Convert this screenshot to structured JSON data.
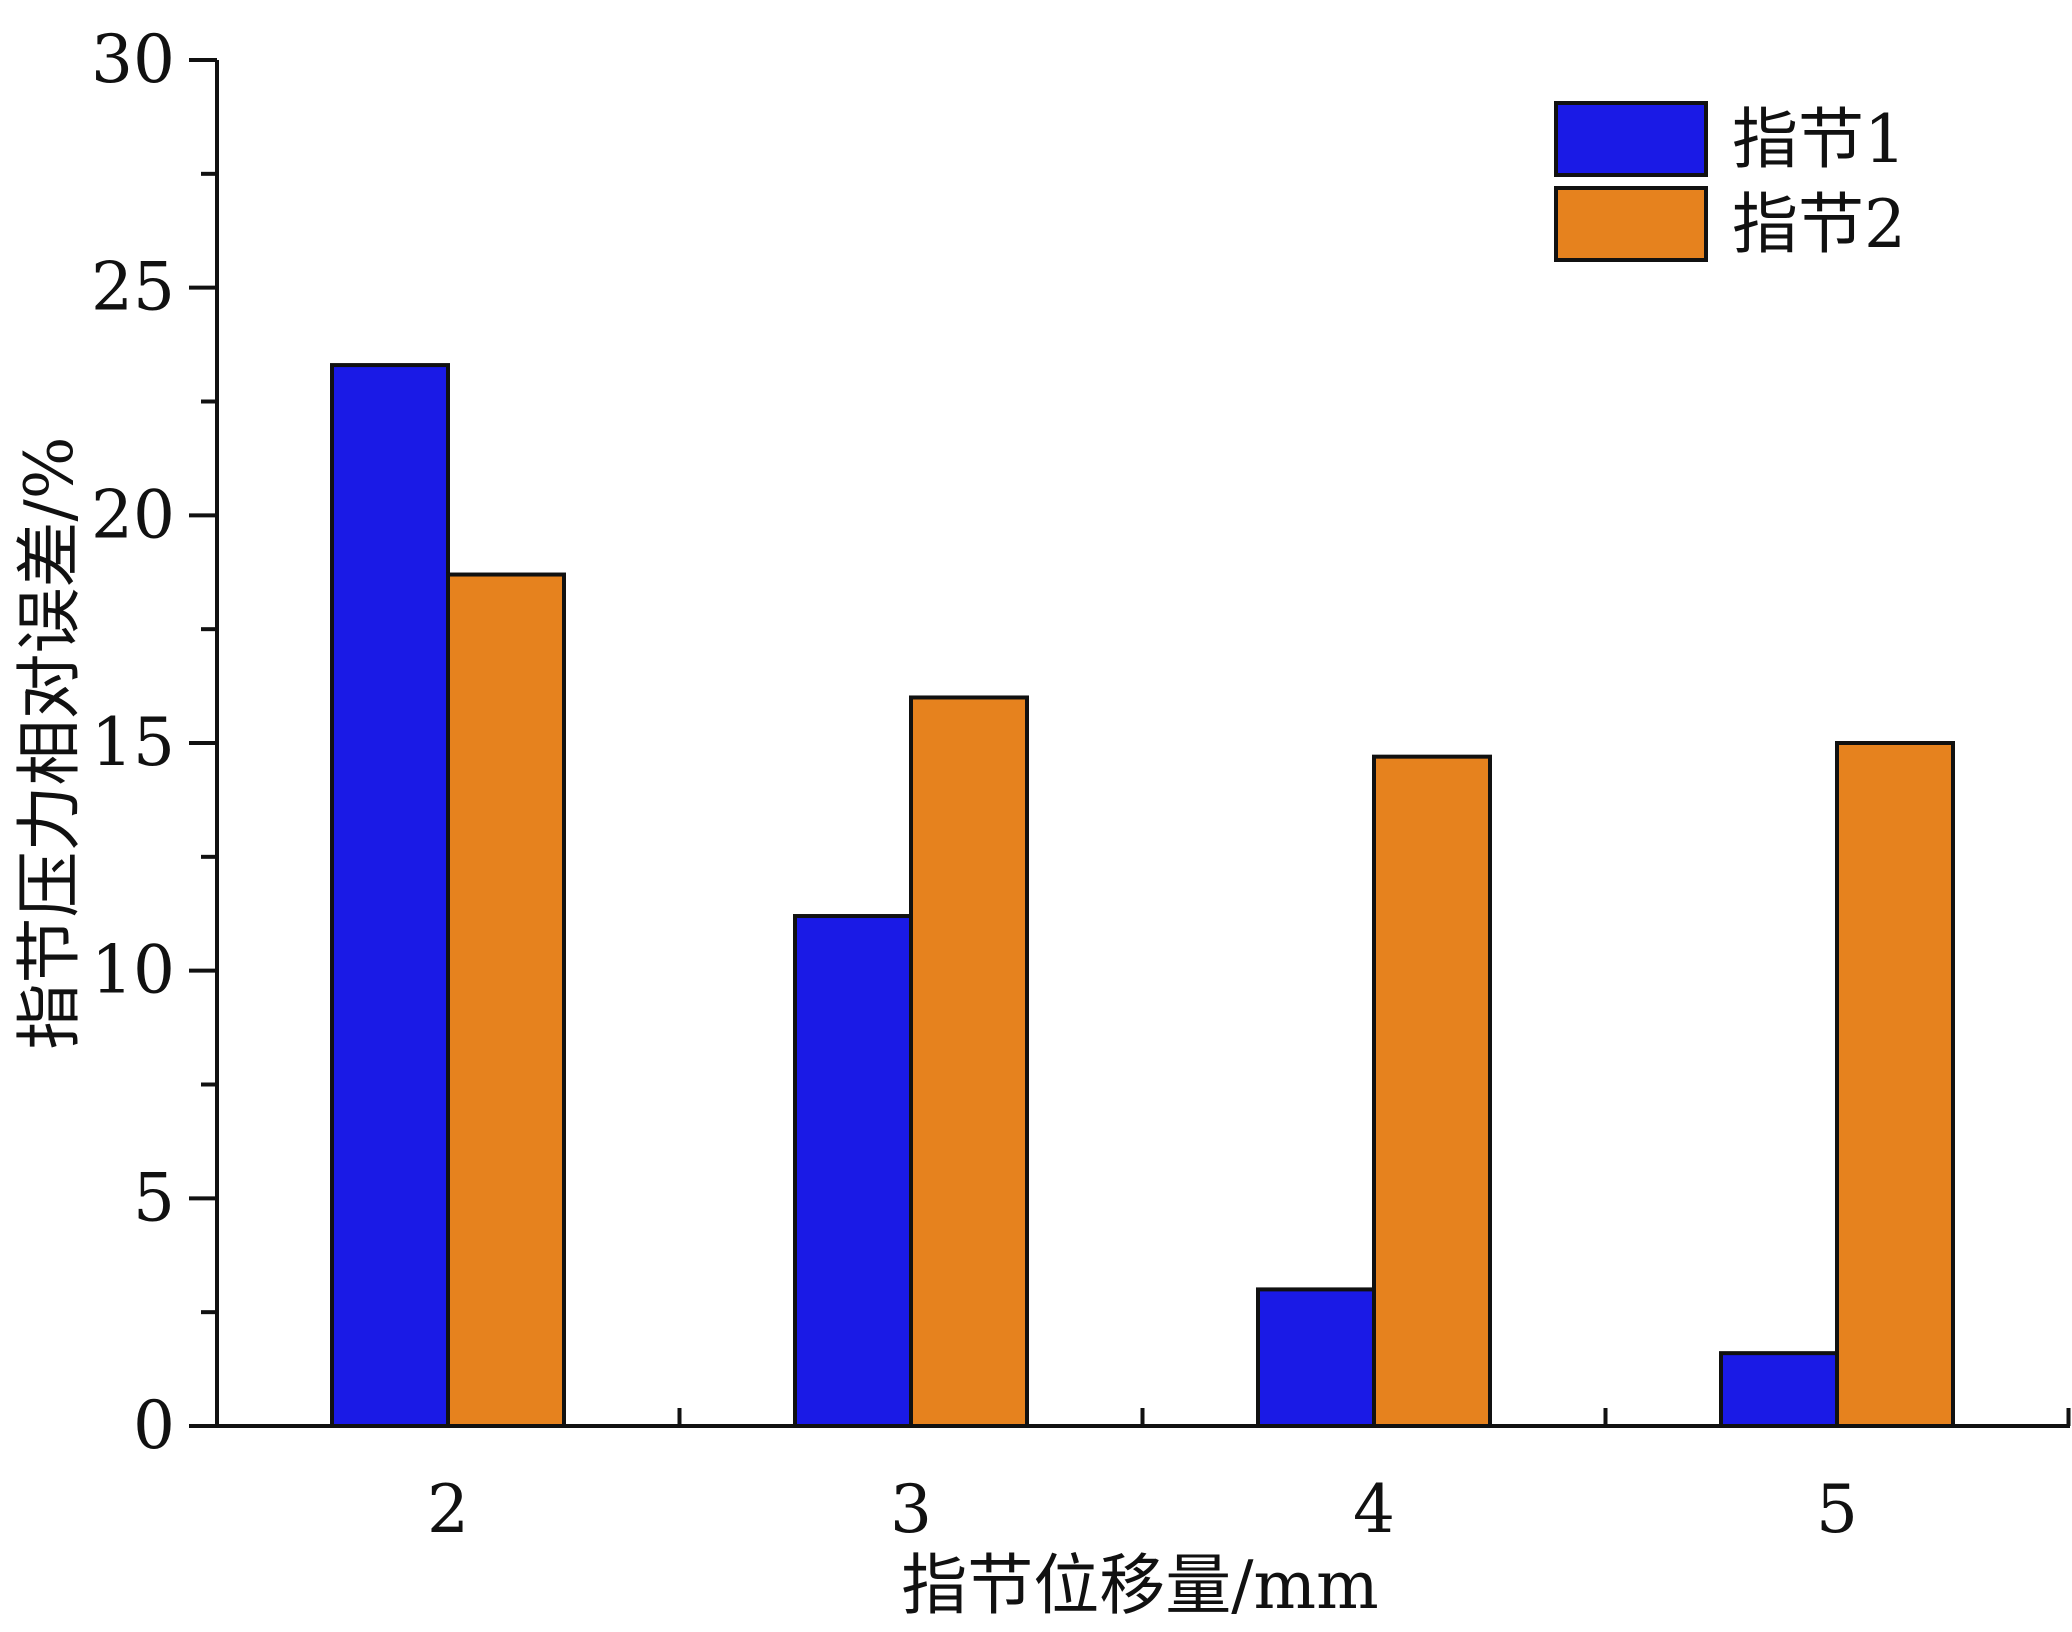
{
  "chart_data": {
    "type": "bar",
    "title": "",
    "xlabel": "指节位移量/mm",
    "ylabel": "指节压力相对误差/%",
    "categories": [
      "2",
      "3",
      "4",
      "5"
    ],
    "series": [
      {
        "name": "指节1",
        "values": [
          23.3,
          11.2,
          3.0,
          1.6
        ],
        "color": "#1A1AE6"
      },
      {
        "name": "指节2",
        "values": [
          18.7,
          16.0,
          14.7,
          15.0
        ],
        "color": "#E6821E"
      }
    ],
    "ylim": [
      0,
      30
    ],
    "yticks": [
      0,
      5,
      10,
      15,
      20,
      25,
      30
    ],
    "ytick_labels": [
      "0",
      "5",
      "10",
      "15",
      "20",
      "25",
      "30"
    ],
    "grid": false,
    "legend_position": "top-right"
  }
}
